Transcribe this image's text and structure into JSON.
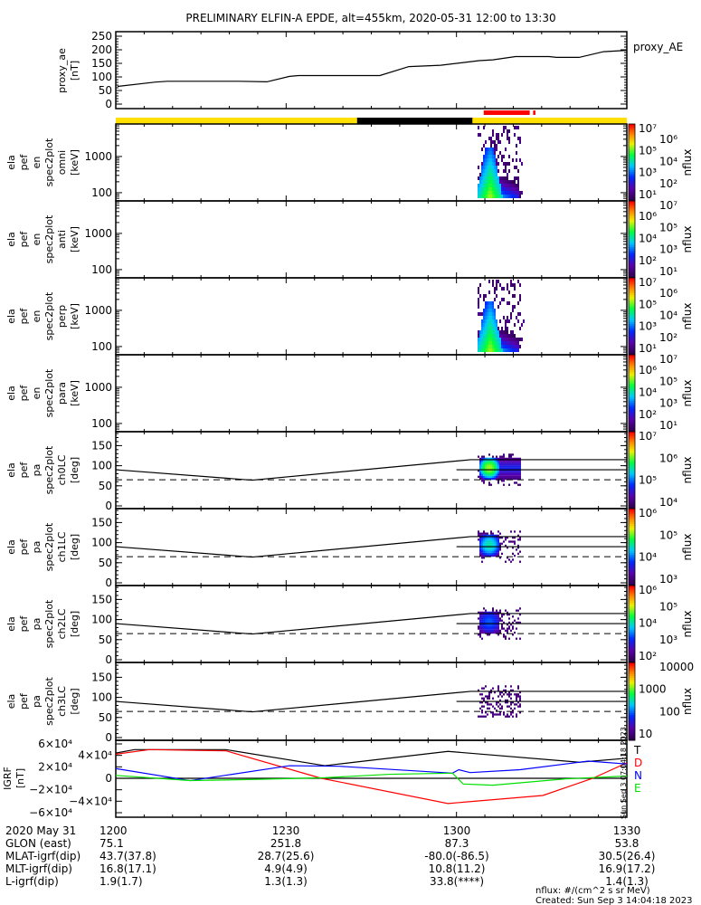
{
  "title": "PRELIMINARY ELFIN-A EPDE, alt=455km, 2020-05-31 12:00 to 13:30",
  "orbit_bar": {
    "colors": {
      "sunlit": "#ffe000",
      "shadow": "#000000",
      "science": "#ff0000"
    },
    "shadow_start_min": 42.5,
    "shadow_end_min": 62.8,
    "science_segments": [
      [
        64.8,
        72.9
      ],
      [
        73.5,
        73.9
      ]
    ]
  },
  "chart_data": [
    {
      "type": "line",
      "name": "proxy_ae",
      "ylabel_lines": [
        "proxy_ae",
        "[nT]"
      ],
      "legend": "proxy_AE",
      "ylim": [
        0,
        250
      ],
      "yticks": [
        "0",
        "50",
        "100",
        "150",
        "200",
        "250"
      ],
      "x_minutes": [
        0.3,
        7.0,
        9.1,
        21.8,
        26.6,
        30.6,
        32.2,
        46.5,
        51.6,
        57.2,
        64.0,
        66.4,
        70.4,
        76.3,
        77.6,
        81.6,
        85.9,
        90
      ],
      "values": [
        65,
        81,
        84,
        84,
        82,
        102,
        105,
        105,
        138,
        143,
        160,
        163,
        175,
        175,
        172,
        172,
        193,
        198
      ]
    },
    {
      "type": "heatmap",
      "name": "omni",
      "ylabel_lines": [
        "ela",
        "pef",
        "en",
        "spec2plot",
        "omni",
        "[keV]"
      ],
      "yscale": "log",
      "yticks": [
        "1000",
        "100"
      ],
      "colorbar": {
        "label": "nflux",
        "ticks": [
          "10⁷",
          "10⁶",
          "10⁵",
          "10⁴",
          "10³",
          "10²",
          "10¹"
        ]
      }
    },
    {
      "type": "heatmap",
      "name": "anti",
      "ylabel_lines": [
        "ela",
        "pef",
        "en",
        "spec2plot",
        "anti",
        "[keV]"
      ],
      "yscale": "log",
      "yticks": [
        "1000",
        "100"
      ],
      "colorbar": {
        "label": "nflux",
        "ticks": [
          "10⁷",
          "10⁶",
          "10⁵",
          "10⁴",
          "10³",
          "10²",
          "10¹"
        ]
      }
    },
    {
      "type": "heatmap",
      "name": "perp",
      "ylabel_lines": [
        "ela",
        "pef",
        "en",
        "spec2plot",
        "perp",
        "[keV]"
      ],
      "yscale": "log",
      "yticks": [
        "1000",
        "100"
      ],
      "colorbar": {
        "label": "nflux",
        "ticks": [
          "10⁷",
          "10⁶",
          "10⁵",
          "10⁴",
          "10³",
          "10²",
          "10¹"
        ]
      }
    },
    {
      "type": "heatmap",
      "name": "para",
      "ylabel_lines": [
        "ela",
        "pef",
        "en",
        "spec2plot",
        "para",
        "[keV]"
      ],
      "yscale": "log",
      "yticks": [
        "1000",
        "100"
      ],
      "colorbar": {
        "label": "nflux",
        "ticks": [
          "10⁷",
          "10⁶",
          "10⁵",
          "10⁴",
          "10³",
          "10²",
          "10¹"
        ]
      }
    },
    {
      "type": "heatmap",
      "name": "ch0LC",
      "ylabel_lines": [
        "ela",
        "pef",
        "pa",
        "spec2plot",
        "ch0LC",
        "[deg]"
      ],
      "ylim": [
        0,
        180
      ],
      "yticks": [
        "150",
        "100",
        "50",
        "0"
      ],
      "colorbar": {
        "label": "nflux",
        "ticks": [
          "10⁷",
          "10⁶",
          "10⁵",
          "10⁴"
        ]
      }
    },
    {
      "type": "heatmap",
      "name": "ch1LC",
      "ylabel_lines": [
        "ela",
        "pef",
        "pa",
        "spec2plot",
        "ch1LC",
        "[deg]"
      ],
      "ylim": [
        0,
        180
      ],
      "yticks": [
        "150",
        "100",
        "50",
        "0"
      ],
      "colorbar": {
        "label": "nflux",
        "ticks": [
          "10⁶",
          "10⁵",
          "10⁴",
          "10³"
        ]
      }
    },
    {
      "type": "heatmap",
      "name": "ch2LC",
      "ylabel_lines": [
        "ela",
        "pef",
        "pa",
        "spec2plot",
        "ch2LC",
        "[deg]"
      ],
      "ylim": [
        0,
        180
      ],
      "yticks": [
        "150",
        "100",
        "50",
        "0"
      ],
      "colorbar": {
        "label": "nflux",
        "ticks": [
          "10⁶",
          "10⁵",
          "10⁴",
          "10³",
          "10²"
        ]
      }
    },
    {
      "type": "heatmap",
      "name": "ch3LC",
      "ylabel_lines": [
        "ela",
        "pef",
        "pa",
        "spec2plot",
        "ch3LC",
        "[deg]"
      ],
      "ylim": [
        0,
        180
      ],
      "yticks": [
        "150",
        "100",
        "50",
        "0"
      ],
      "colorbar": {
        "label": "nflux",
        "ticks": [
          "10000",
          "1000",
          "100",
          "10"
        ]
      }
    },
    {
      "type": "line",
      "name": "IGRF",
      "ylabel_lines": [
        "IGRF",
        "[nT]"
      ],
      "ylim": [
        -60000,
        60000
      ],
      "yticks": [
        "6×10⁴",
        "4×10⁴",
        "2×10⁴",
        "0",
        "−2×10⁴",
        "−4×10⁴",
        "−6×10⁴"
      ],
      "series": [
        {
          "name": "T",
          "color": "#000000",
          "x_minutes": [
            0,
            3.3,
            19.4,
            36.8,
            58.5,
            81.6,
            90
          ],
          "values": [
            44000,
            50000,
            50000,
            22000,
            47000,
            28000,
            35000
          ]
        },
        {
          "name": "D",
          "color": "#ff0000",
          "x_minutes": [
            0,
            5.9,
            19.4,
            36.2,
            58.5,
            75.2,
            84,
            90
          ],
          "values": [
            42000,
            50000,
            48000,
            0,
            -44000,
            -30000,
            0,
            27000
          ]
        },
        {
          "name": "N",
          "color": "#0000ff",
          "x_minutes": [
            0,
            13.1,
            30.6,
            39.4,
            59.3,
            60.4,
            62.4,
            71.2,
            83.2,
            90
          ],
          "values": [
            17000,
            -4000,
            22000,
            21000,
            9000,
            15000,
            10000,
            15000,
            30000,
            25000
          ]
        },
        {
          "name": "E",
          "color": "#00e000",
          "x_minutes": [
            0,
            13.1,
            24.2,
            36.8,
            48.2,
            59.3,
            61.2,
            66.4,
            79.2,
            90
          ],
          "values": [
            5000,
            -4000,
            -2000,
            1000,
            7000,
            9000,
            -10000,
            -12000,
            -1000,
            4000
          ]
        }
      ]
    }
  ],
  "side_stamp": "Sun Sep  3 07:04:18 2023",
  "footer_table": {
    "rows": [
      {
        "label": "2020 May 31",
        "values": [
          "1200",
          "1230",
          "1300",
          "1330"
        ]
      },
      {
        "label": "GLON (east)",
        "values": [
          "75.1",
          "251.8",
          "87.3",
          "53.8"
        ]
      },
      {
        "label": "MLAT-igrf(dip)",
        "values": [
          "43.7(37.8)",
          "28.7(25.6)",
          "-80.0(-86.5)",
          "30.5(26.4)"
        ]
      },
      {
        "label": "MLT-igrf(dip)",
        "values": [
          "16.8(17.1)",
          "4.9(4.9)",
          "10.8(11.2)",
          "16.9(17.2)"
        ]
      },
      {
        "label": "L-igrf(dip)",
        "values": [
          "1.9(1.7)",
          "1.3(1.3)",
          "33.8(****)",
          "1.4(1.3)"
        ]
      }
    ]
  },
  "footnote_units": "nflux: #/(cm^2 s sr MeV)",
  "footnote_created": "Created: Sun Sep  3 14:04:18 2023"
}
